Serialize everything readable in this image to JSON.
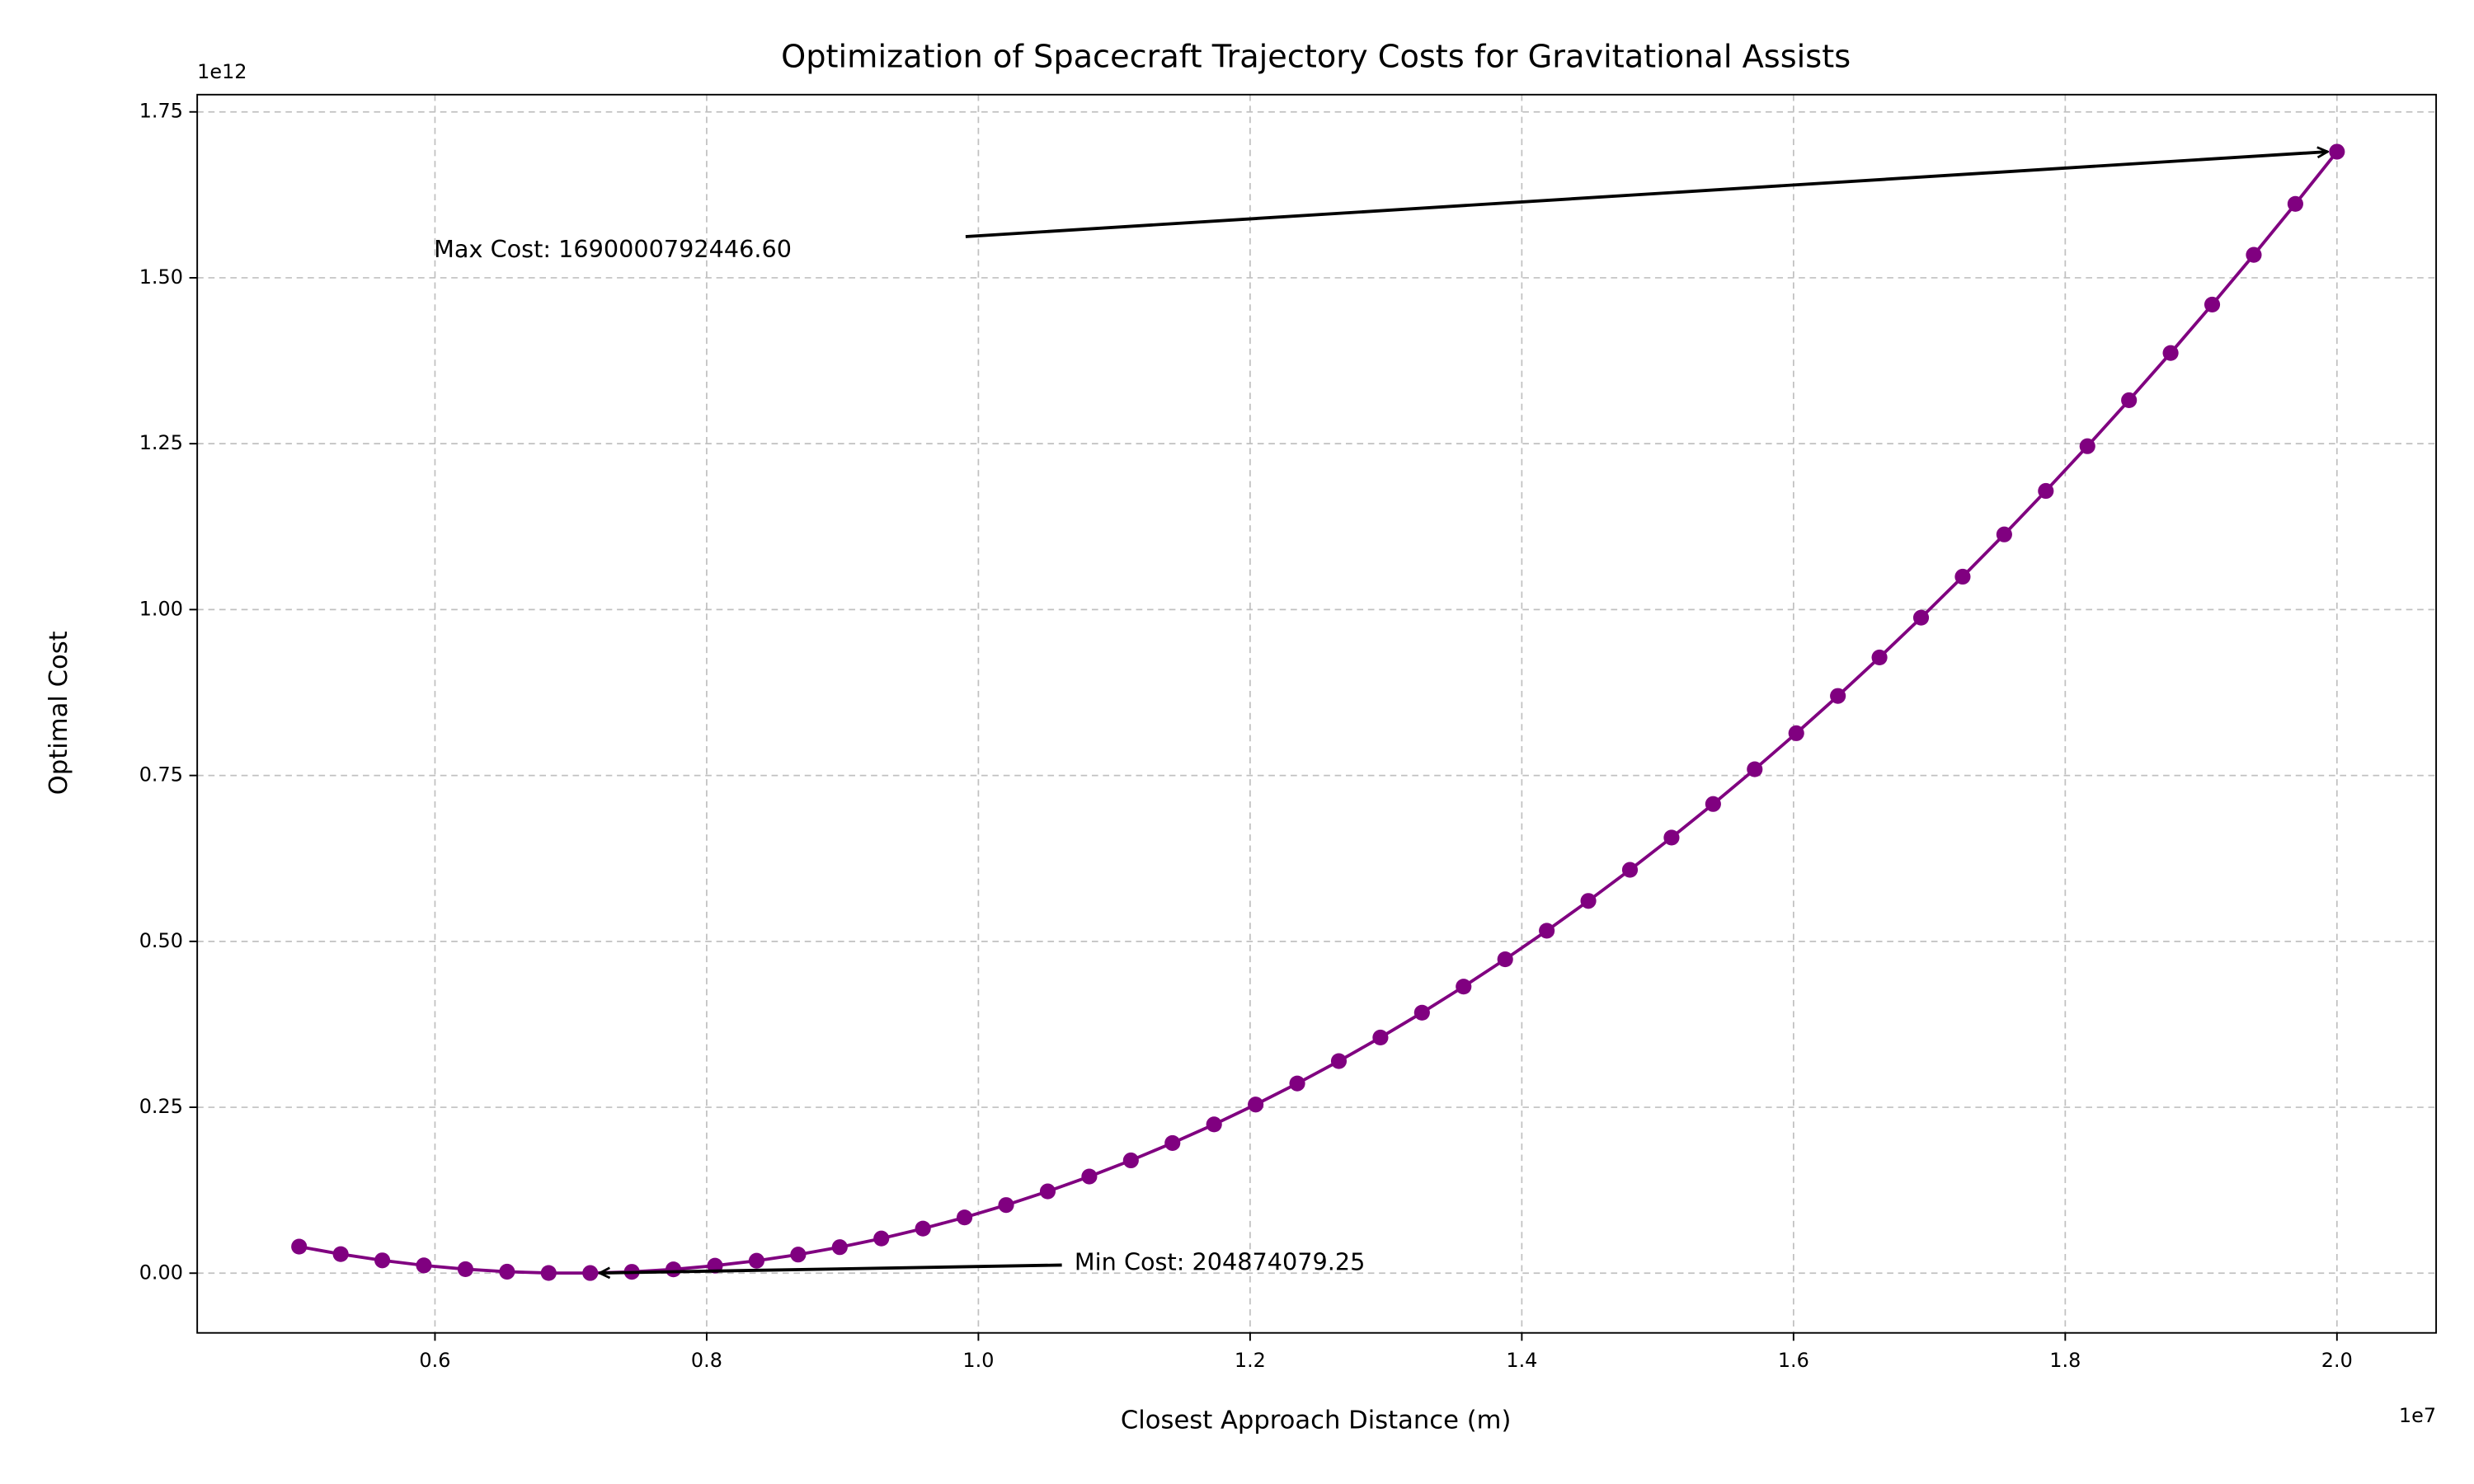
{
  "chart_data": {
    "type": "line",
    "title": "Optimization of Spacecraft Trajectory Costs for Gravitational Assists",
    "x_label": "Closest Approach Distance (m)",
    "y_label": "Optimal Cost",
    "x_offset_label": "1e7",
    "y_offset_label": "1e12",
    "x": [
      5000000,
      5306122,
      5612245,
      5918367,
      6224490,
      6530612,
      6836735,
      7142857,
      7448980,
      7755102,
      8061224,
      8367347,
      8673469,
      8979592,
      9285714,
      9591837,
      9897959,
      10204082,
      10510204,
      10816327,
      11122449,
      11428571,
      11734694,
      12040816,
      12346939,
      12653061,
      12959184,
      13265306,
      13571429,
      13877551,
      14183673,
      14489796,
      14795918,
      15102041,
      15408163,
      15714286,
      16020408,
      16326531,
      16632653,
      16938776,
      17244898,
      17551020,
      17857143,
      18163265,
      18469388,
      18775510,
      19081633,
      19387755,
      19693878,
      20000000
    ],
    "series": [
      {
        "color": "#800080",
        "values": [
          40000000000,
          28690000000,
          19260000000,
          11700000000,
          6014000000,
          2203000000,
          267400000,
          204874079.25,
          2016000000,
          5702000000,
          11262000000,
          18696000000,
          28005000000,
          39188000000,
          52245000000,
          67176000000,
          83982000000,
          102661000000,
          123215000000,
          145643000000,
          169946000000,
          196122000000,
          224173000000,
          254098000000,
          285898000000,
          319571000000,
          355119000000,
          392541000000,
          431837000000,
          473007000000,
          516052000000,
          560970000000,
          607763000000,
          656431000000,
          706972000000,
          759388000000,
          813678000000,
          869842000000,
          927880000000,
          987793000000,
          1049580000000,
          1113240000000,
          1178780000000,
          1246180000000,
          1315470000000,
          1386630000000,
          1459660000000,
          1534560000000,
          1611350000000,
          1690000792446.6
        ]
      }
    ],
    "annotations": [
      "Max Cost: 1690000792446.60",
      "Min Cost: 204874079.25"
    ],
    "xlim": [
      4250000,
      20730000
    ],
    "ylim": [
      -90000000000,
      1776000000000
    ],
    "xticks": [
      {
        "value": 6000000,
        "label": "0.6"
      },
      {
        "value": 8000000,
        "label": "0.8"
      },
      {
        "value": 10000000,
        "label": "1.0"
      },
      {
        "value": 12000000,
        "label": "1.2"
      },
      {
        "value": 14000000,
        "label": "1.4"
      },
      {
        "value": 16000000,
        "label": "1.6"
      },
      {
        "value": 18000000,
        "label": "1.8"
      },
      {
        "value": 20000000,
        "label": "2.0"
      }
    ],
    "yticks": [
      {
        "value": 0,
        "label": "0.00"
      },
      {
        "value": 250000000000,
        "label": "0.25"
      },
      {
        "value": 500000000000,
        "label": "0.50"
      },
      {
        "value": 750000000000,
        "label": "0.75"
      },
      {
        "value": 1000000000000,
        "label": "1.00"
      },
      {
        "value": 1250000000000,
        "label": "1.25"
      },
      {
        "value": 1500000000000,
        "label": "1.50"
      },
      {
        "value": 1750000000000,
        "label": "1.75"
      }
    ],
    "grid": true
  }
}
